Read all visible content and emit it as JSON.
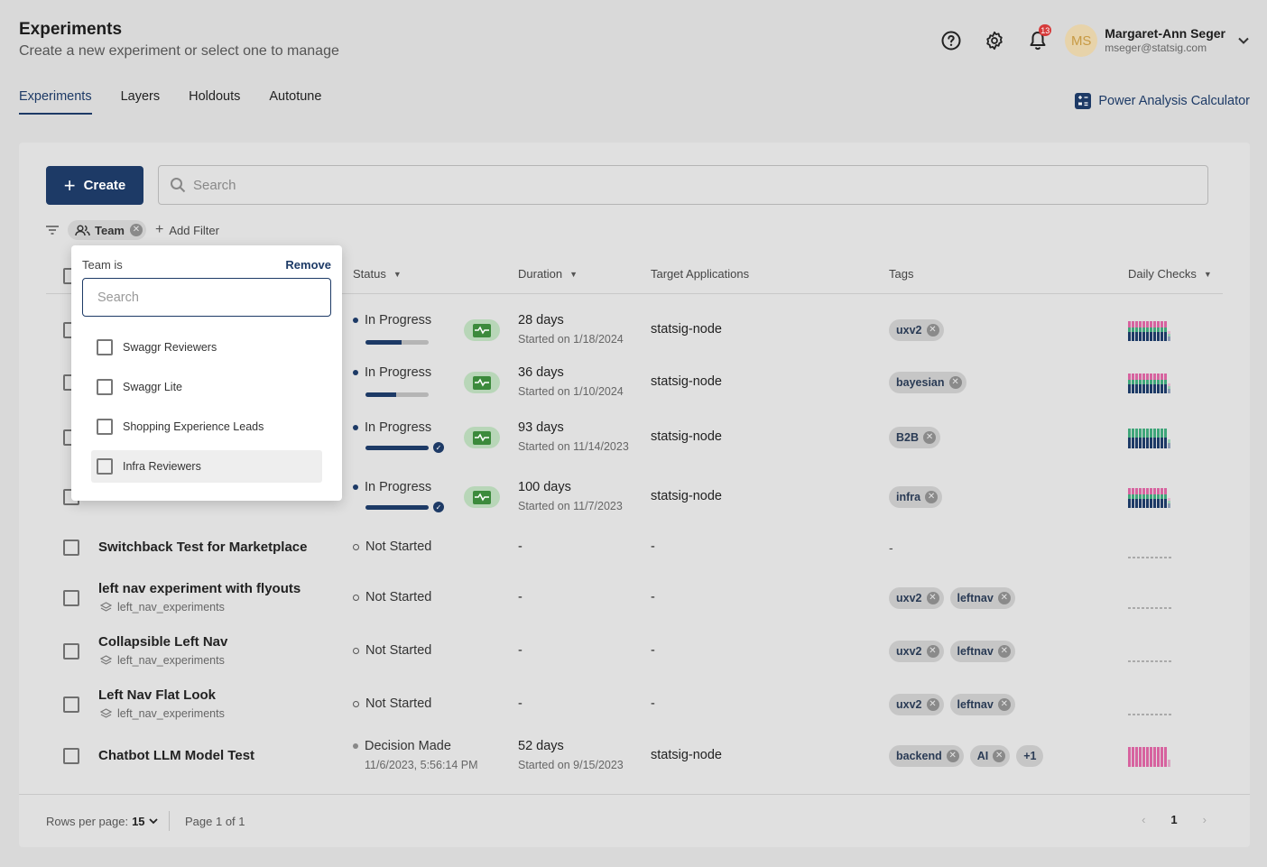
{
  "header": {
    "title": "Experiments",
    "subtitle": "Create a new experiment or select one to manage"
  },
  "user": {
    "initials": "MS",
    "name": "Margaret-Ann Seger",
    "email": "mseger@statsig.com",
    "notifications": "13"
  },
  "tabs": [
    {
      "label": "Experiments",
      "active": true
    },
    {
      "label": "Layers"
    },
    {
      "label": "Holdouts"
    },
    {
      "label": "Autotune"
    }
  ],
  "power_link": "Power Analysis Calculator",
  "toolbar": {
    "create_label": "Create",
    "search_placeholder": "Search"
  },
  "filters": {
    "team_chip": "Team",
    "add_filter": "Add Filter"
  },
  "columns": {
    "status": "Status",
    "duration": "Duration",
    "target": "Target Applications",
    "tags": "Tags",
    "daily": "Daily Checks"
  },
  "rows": [
    {
      "name": "",
      "status": "In Progress",
      "progress": 0.57,
      "complete": false,
      "duration": "28 days",
      "started": "Started on 1/18/2024",
      "target": "statsig-node",
      "tags": [
        "uxv2"
      ],
      "daily": "mixed"
    },
    {
      "name": "",
      "status": "In Progress",
      "progress": 0.49,
      "complete": false,
      "duration": "36 days",
      "started": "Started on 1/10/2024",
      "target": "statsig-node",
      "tags": [
        "bayesian"
      ],
      "daily": "mixed"
    },
    {
      "name": "",
      "status": "In Progress",
      "progress": 1.0,
      "complete": true,
      "duration": "93 days",
      "started": "Started on 11/14/2023",
      "target": "statsig-node",
      "tags": [
        "B2B"
      ],
      "daily": "greens"
    },
    {
      "name": "",
      "status": "In Progress",
      "progress": 1.0,
      "complete": true,
      "duration": "100 days",
      "started": "Started on 11/7/2023",
      "target": "statsig-node",
      "tags": [
        "infra"
      ],
      "daily": "mixed"
    },
    {
      "name": "Switchback Test for Marketplace",
      "status": "Not Started",
      "duration": "-",
      "target": "-",
      "tags": [],
      "tags_empty": "-",
      "daily": "empty"
    },
    {
      "name": "left nav experiment with flyouts",
      "layer": "left_nav_experiments",
      "status": "Not Started",
      "duration": "-",
      "target": "-",
      "tags": [
        "uxv2",
        "leftnav"
      ],
      "daily": "empty"
    },
    {
      "name": "Collapsible Left Nav",
      "layer": "left_nav_experiments",
      "status": "Not Started",
      "duration": "-",
      "target": "-",
      "tags": [
        "uxv2",
        "leftnav"
      ],
      "daily": "empty"
    },
    {
      "name": "Left Nav Flat Look",
      "layer": "left_nav_experiments",
      "status": "Not Started",
      "duration": "-",
      "target": "-",
      "tags": [
        "uxv2",
        "leftnav"
      ],
      "daily": "empty"
    },
    {
      "name": "Chatbot LLM Model Test",
      "status": "Decision Made",
      "status_sub": "11/6/2023, 5:56:14 PM",
      "duration": "52 days",
      "started": "Started on 9/15/2023",
      "target": "statsig-node",
      "tags": [
        "backend",
        "AI"
      ],
      "tags_more": "+1",
      "daily": "pinks"
    }
  ],
  "footer": {
    "rows_per_page_label": "Rows per page:",
    "rows_per_page": "15",
    "page_info": "Page 1 of 1",
    "current_page": "1"
  },
  "dropdown": {
    "title": "Team is",
    "remove": "Remove",
    "search_placeholder": "Search",
    "options": [
      "Swaggr Reviewers",
      "Swaggr Lite",
      "Shopping Experience Leads",
      "Infra Reviewers"
    ]
  },
  "colors": {
    "primary": "#1d3a66",
    "pink": "#d7639f",
    "green": "#3fa67a",
    "navy": "#1d3a66",
    "notif": "#d63b3b"
  }
}
